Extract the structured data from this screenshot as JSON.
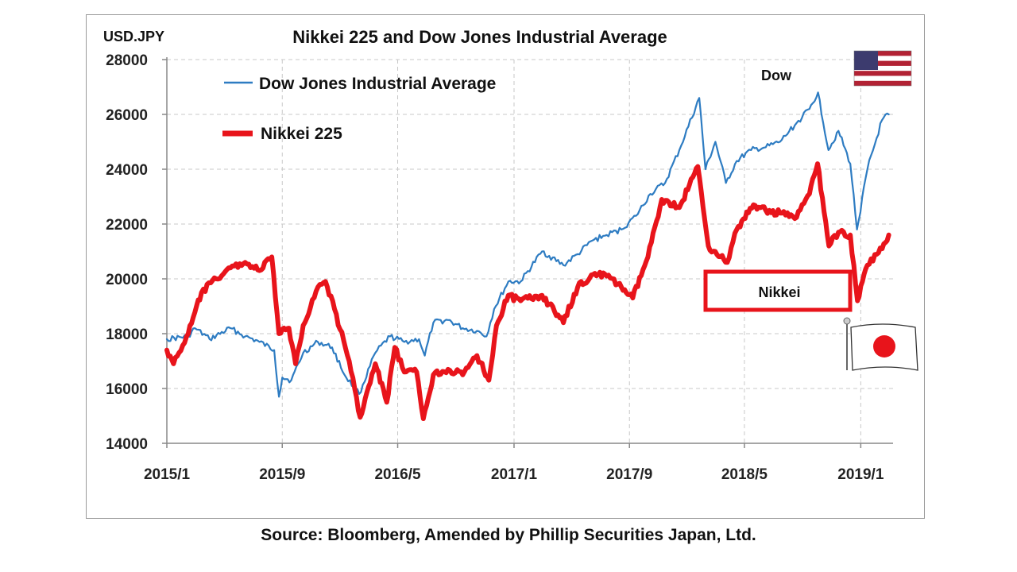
{
  "chart_data": {
    "type": "line",
    "title": "Nikkei 225 and Dow Jones Industrial Average",
    "ylabel": "USD.JPY",
    "ylim": [
      14000,
      28000
    ],
    "yticks": [
      "14000",
      "16000",
      "18000",
      "20000",
      "22000",
      "24000",
      "26000",
      "28000"
    ],
    "xticks": [
      "2015/1",
      "2015/9",
      "2016/5",
      "2017/1",
      "2017/9",
      "2018/5",
      "2019/1"
    ],
    "xlim": [
      "2015-01",
      "2019-03"
    ],
    "legend_position": "top-left",
    "grid": "horizontal dashed",
    "annotations": {
      "dow": "Dow",
      "nikkei": "Nikkei"
    },
    "series": [
      {
        "name": "Dow Jones Industrial Average",
        "color": "#2e7cc2",
        "points": [
          [
            "2015-01-01",
            17800
          ],
          [
            "2015-02-15",
            17900
          ],
          [
            "2015-03-01",
            18200
          ],
          [
            "2015-04-01",
            17800
          ],
          [
            "2015-05-15",
            18200
          ],
          [
            "2015-06-15",
            17900
          ],
          [
            "2015-07-15",
            17700
          ],
          [
            "2015-08-15",
            17400
          ],
          [
            "2015-08-25",
            15700
          ],
          [
            "2015-09-01",
            16400
          ],
          [
            "2015-09-20",
            16300
          ],
          [
            "2015-10-15",
            17300
          ],
          [
            "2015-11-15",
            17700
          ],
          [
            "2015-12-15",
            17500
          ],
          [
            "2016-01-10",
            16500
          ],
          [
            "2016-02-10",
            15800
          ],
          [
            "2016-03-15",
            17300
          ],
          [
            "2016-04-15",
            17900
          ],
          [
            "2016-05-15",
            17700
          ],
          [
            "2016-06-15",
            17800
          ],
          [
            "2016-06-27",
            17200
          ],
          [
            "2016-07-15",
            18400
          ],
          [
            "2016-08-15",
            18500
          ],
          [
            "2016-09-15",
            18200
          ],
          [
            "2016-10-15",
            18100
          ],
          [
            "2016-11-04",
            17900
          ],
          [
            "2016-11-20",
            18900
          ],
          [
            "2016-12-20",
            19900
          ],
          [
            "2017-01-15",
            19900
          ],
          [
            "2017-03-01",
            21000
          ],
          [
            "2017-04-15",
            20500
          ],
          [
            "2017-05-15",
            20900
          ],
          [
            "2017-06-15",
            21400
          ],
          [
            "2017-07-15",
            21600
          ],
          [
            "2017-08-15",
            21800
          ],
          [
            "2017-09-15",
            22300
          ],
          [
            "2017-10-15",
            23100
          ],
          [
            "2017-11-15",
            23500
          ],
          [
            "2017-12-15",
            24700
          ],
          [
            "2018-01-26",
            26600
          ],
          [
            "2018-02-08",
            24000
          ],
          [
            "2018-03-01",
            25000
          ],
          [
            "2018-03-23",
            23500
          ],
          [
            "2018-04-15",
            24300
          ],
          [
            "2018-05-15",
            24700
          ],
          [
            "2018-06-15",
            24800
          ],
          [
            "2018-07-15",
            25000
          ],
          [
            "2018-08-15",
            25600
          ],
          [
            "2018-09-15",
            26200
          ],
          [
            "2018-10-03",
            26800
          ],
          [
            "2018-10-25",
            24700
          ],
          [
            "2018-11-15",
            25400
          ],
          [
            "2018-12-10",
            24200
          ],
          [
            "2018-12-24",
            21800
          ],
          [
            "2019-01-15",
            24000
          ],
          [
            "2019-02-15",
            25800
          ],
          [
            "2019-03-01",
            26000
          ]
        ]
      },
      {
        "name": "Nikkei 225",
        "color": "#e8141b",
        "points": [
          [
            "2015-01-01",
            17400
          ],
          [
            "2015-01-15",
            16900
          ],
          [
            "2015-02-15",
            18000
          ],
          [
            "2015-03-15",
            19500
          ],
          [
            "2015-04-15",
            20000
          ],
          [
            "2015-05-15",
            20400
          ],
          [
            "2015-06-15",
            20600
          ],
          [
            "2015-07-15",
            20300
          ],
          [
            "2015-08-10",
            20800
          ],
          [
            "2015-08-25",
            18000
          ],
          [
            "2015-09-15",
            18200
          ],
          [
            "2015-09-29",
            16900
          ],
          [
            "2015-10-15",
            18300
          ],
          [
            "2015-11-15",
            19700
          ],
          [
            "2015-12-01",
            19900
          ],
          [
            "2015-12-20",
            18900
          ],
          [
            "2016-01-20",
            17000
          ],
          [
            "2016-02-12",
            14950
          ],
          [
            "2016-03-15",
            16900
          ],
          [
            "2016-04-08",
            15500
          ],
          [
            "2016-04-25",
            17500
          ],
          [
            "2016-05-15",
            16600
          ],
          [
            "2016-06-10",
            16600
          ],
          [
            "2016-06-24",
            14900
          ],
          [
            "2016-07-15",
            16500
          ],
          [
            "2016-08-15",
            16700
          ],
          [
            "2016-09-15",
            16500
          ],
          [
            "2016-10-15",
            17200
          ],
          [
            "2016-11-09",
            16300
          ],
          [
            "2016-11-25",
            18300
          ],
          [
            "2016-12-20",
            19400
          ],
          [
            "2017-01-15",
            19200
          ],
          [
            "2017-03-01",
            19400
          ],
          [
            "2017-04-15",
            18400
          ],
          [
            "2017-05-15",
            19700
          ],
          [
            "2017-06-20",
            20200
          ],
          [
            "2017-07-15",
            20100
          ],
          [
            "2017-08-15",
            19700
          ],
          [
            "2017-09-08",
            19300
          ],
          [
            "2017-10-10",
            20800
          ],
          [
            "2017-11-08",
            22900
          ],
          [
            "2017-12-15",
            22600
          ],
          [
            "2018-01-23",
            24100
          ],
          [
            "2018-02-14",
            21200
          ],
          [
            "2018-03-26",
            20600
          ],
          [
            "2018-04-15",
            21800
          ],
          [
            "2018-05-20",
            22700
          ],
          [
            "2018-06-15",
            22500
          ],
          [
            "2018-07-15",
            22400
          ],
          [
            "2018-08-15",
            22200
          ],
          [
            "2018-09-15",
            23100
          ],
          [
            "2018-10-02",
            24200
          ],
          [
            "2018-10-26",
            21200
          ],
          [
            "2018-11-15",
            21700
          ],
          [
            "2018-12-10",
            21600
          ],
          [
            "2018-12-25",
            19200
          ],
          [
            "2019-01-15",
            20500
          ],
          [
            "2019-02-15",
            21100
          ],
          [
            "2019-03-01",
            21600
          ]
        ]
      }
    ]
  },
  "source": "Source: Bloomberg, Amended by Phillip Securities Japan, Ltd."
}
